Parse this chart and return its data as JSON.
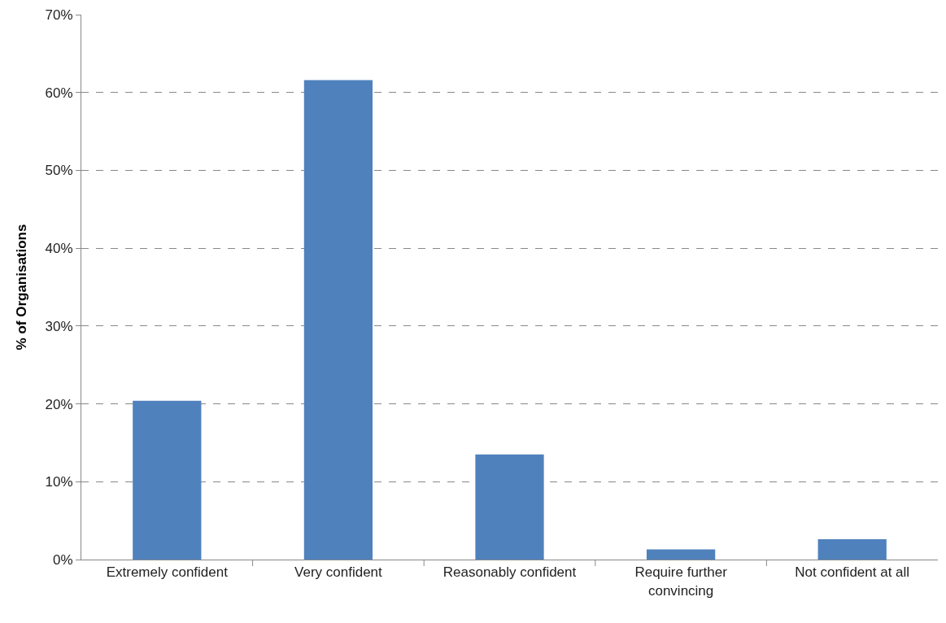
{
  "chart_data": {
    "type": "bar",
    "ylabel": "% of Organisations",
    "categories": [
      "Extremely confident",
      "Very confident",
      "Reasonably confident",
      "Require further convincing",
      "Not confident at all"
    ],
    "values": [
      20.4,
      61.6,
      13.5,
      1.3,
      2.6
    ],
    "color": "#4f81bd",
    "ylim": [
      0,
      70
    ],
    "yticks": [
      {
        "value": 0,
        "label": "0%"
      },
      {
        "value": 10,
        "label": "10%"
      },
      {
        "value": 20,
        "label": "20%"
      },
      {
        "value": 30,
        "label": "30%"
      },
      {
        "value": 40,
        "label": "40%"
      },
      {
        "value": 50,
        "label": "50%"
      },
      {
        "value": 60,
        "label": "60%"
      },
      {
        "value": 70,
        "label": "70%"
      }
    ],
    "grid": "y",
    "legend": false
  }
}
